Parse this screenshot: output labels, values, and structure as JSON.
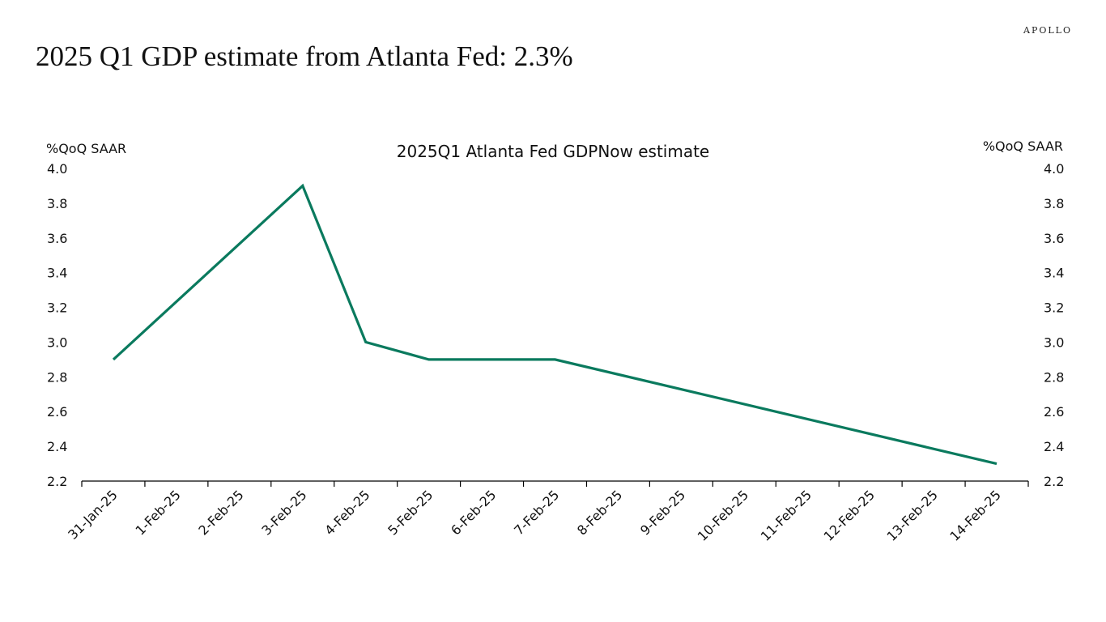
{
  "brand": "APOLLO",
  "headline": "2025 Q1 GDP estimate from Atlanta Fed: 2.3%",
  "chart_data": {
    "type": "line",
    "title": "2025Q1 Atlanta Fed GDPNow estimate",
    "ylabel_left": "%QoQ SAAR",
    "ylabel_right": "%QoQ SAAR",
    "categories": [
      "31-Jan-25",
      "1-Feb-25",
      "2-Feb-25",
      "3-Feb-25",
      "4-Feb-25",
      "5-Feb-25",
      "6-Feb-25",
      "7-Feb-25",
      "8-Feb-25",
      "9-Feb-25",
      "10-Feb-25",
      "11-Feb-25",
      "12-Feb-25",
      "13-Feb-25",
      "14-Feb-25"
    ],
    "ylim": [
      2.2,
      4.0
    ],
    "yticks": [
      "2.2",
      "2.4",
      "2.6",
      "2.8",
      "3.0",
      "3.2",
      "3.4",
      "3.6",
      "3.8",
      "4.0"
    ],
    "series": [
      {
        "name": "2025Q1 Atlanta Fed GDPNow estimate",
        "color": "#0a7a5e",
        "points": [
          {
            "x": "31-Jan-25",
            "y": 2.9
          },
          {
            "x": "3-Feb-25",
            "y": 3.9
          },
          {
            "x": "4-Feb-25",
            "y": 3.0
          },
          {
            "x": "5-Feb-25",
            "y": 2.9
          },
          {
            "x": "7-Feb-25",
            "y": 2.9
          },
          {
            "x": "14-Feb-25",
            "y": 2.3
          }
        ]
      }
    ]
  }
}
